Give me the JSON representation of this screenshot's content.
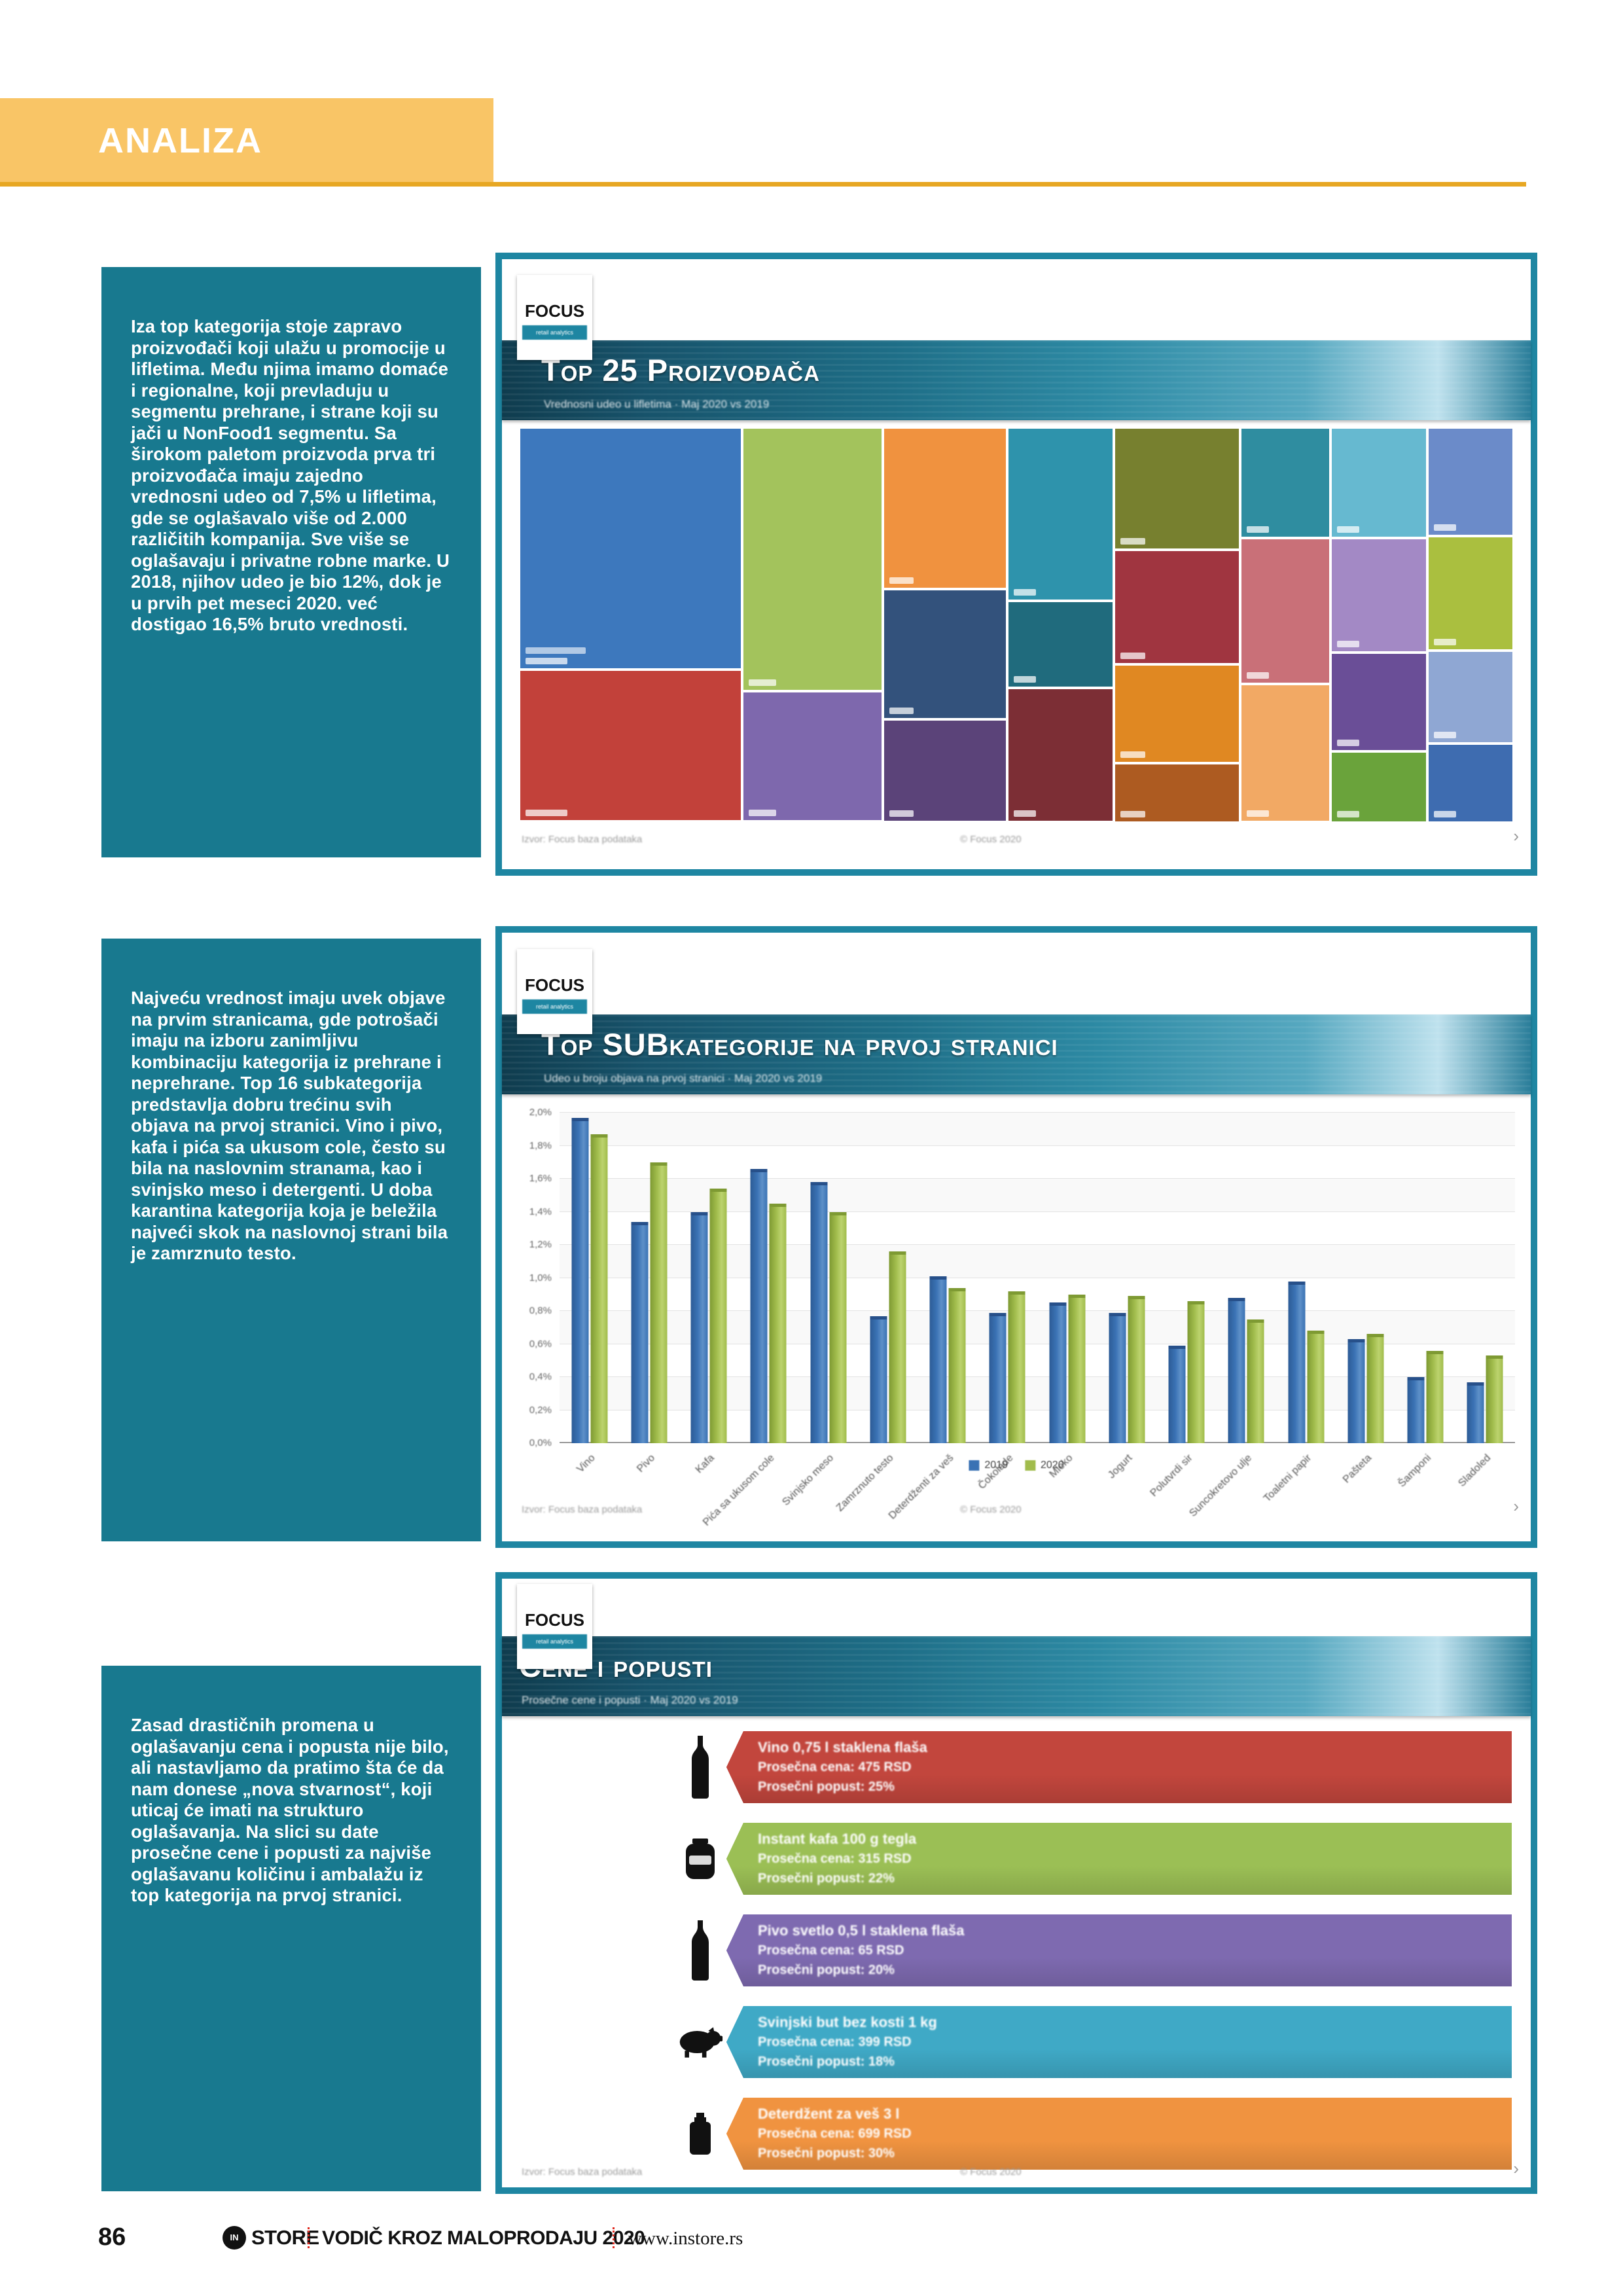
{
  "header": {
    "title": "ANALIZA"
  },
  "paragraphs": {
    "p1": "Iza top kategorija stoje zapravo proizvođači koji ulažu u promocije u lifletima. Među njima imamo domaće i regionalne, koji prevladuju u segmentu prehrane, i strane koji su jači u NonFood1 segmentu. Sa širokom paletom proizvoda prva tri proizvođača imaju zajedno vrednosni udeo od 7,5% u lifletima, gde se oglašavalo više od 2.000 različitih kompanija. Sve više se oglašavaju i privatne robne marke. U 2018, njihov udeo je bio 12%, dok je u prvih pet meseci 2020. već dostigao 16,5% bruto vrednosti.",
    "p2": "Najveću vrednost imaju uvek objave na prvim stranicama, gde potrošači imaju na izboru zanimljivu kombinaciju kategorija iz prehrane i neprehrane. Top 16 subkategorija predstavlja dobru trećinu svih objava na prvoj stranici. Vino i pivo, kafa i pića sa ukusom cole, često su bila na naslovnim stranama, kao i svinjsko meso i detergenti. U doba karantina kategorija koja je beležila najveći skok na naslovnoj strani bila je zamrznuto testo.",
    "p3": "Zasad drastičnih promena u oglašavanju cena i popusta nije bilo, ali nastavljamo da pratimo šta će da nam donese „nova stvarnost“, koji uticaj će imati na strukturo oglašavanja. Na slici su date prosečne cene i popusti za najviše oglašavanu količinu i ambalažu iz top kategorija na prvoj stranici."
  },
  "panel1": {
    "logo": "FOCUS",
    "logo_sub": "retail analytics",
    "title": "Top 25 Proizvođača",
    "subtitle": "Vrednosni udeo u lifletima · Maj 2020 vs 2019",
    "footer_left": "Izvor: Focus baza podataka",
    "footer_center": "© Focus 2020",
    "pager": "›"
  },
  "panel2": {
    "logo": "FOCUS",
    "logo_sub": "retail analytics",
    "title": "Top SUBkategorije na prvoj stranici",
    "subtitle": "Udeo u broju objava na prvoj stranici · Maj 2020 vs 2019",
    "footer_left": "Izvor: Focus baza podataka",
    "footer_center": "© Focus 2020",
    "pager": "›"
  },
  "panel3": {
    "logo": "FOCUS",
    "logo_sub": "retail analytics",
    "title": "Cene i popusti",
    "subtitle": "Prosečne cene i popusti · Maj 2020 vs 2019",
    "footer_left": "Izvor: Focus baza podataka",
    "footer_center": "© Focus 2020",
    "pager": "›"
  },
  "page_footer": {
    "page_number": "86",
    "logo_in": "IN",
    "logo_store": "STORE",
    "guide": "VODIČ KROZ MALOPRODAJU 2020",
    "site": "www.instore.rs"
  },
  "chart_data": [
    {
      "type": "treemap",
      "title": "Top 25 Proizvođača",
      "columns": [
        {
          "width_pct": 22.4,
          "tiles": [
            {
              "color": "#3d78bd",
              "height_pct": 61.5,
              "label": ""
            },
            {
              "color": "#c2413a",
              "height_pct": 38.5,
              "label": ""
            }
          ]
        },
        {
          "width_pct": 14.1,
          "tiles": [
            {
              "color": "#a3c35c",
              "height_pct": 67,
              "label": ""
            },
            {
              "color": "#7e68ad",
              "height_pct": 33,
              "label": ""
            }
          ]
        },
        {
          "width_pct": 12.5,
          "tiles": [
            {
              "color": "#f0923f",
              "height_pct": 41,
              "label": ""
            },
            {
              "color": "#33527c",
              "height_pct": 33,
              "label": ""
            },
            {
              "color": "#5b4379",
              "height_pct": 26,
              "label": ""
            }
          ]
        },
        {
          "width_pct": 10.7,
          "tiles": [
            {
              "color": "#2e93ac",
              "height_pct": 44,
              "label": ""
            },
            {
              "color": "#206b7d",
              "height_pct": 22,
              "label": ""
            },
            {
              "color": "#7c2e35",
              "height_pct": 34,
              "label": ""
            }
          ]
        },
        {
          "width_pct": 12.7,
          "tiles": [
            {
              "color": "#77802f",
              "height_pct": 31,
              "label": ""
            },
            {
              "color": "#a03540",
              "height_pct": 29,
              "label": ""
            },
            {
              "color": "#e08822",
              "height_pct": 25,
              "label": ""
            },
            {
              "color": "#ad5b21",
              "height_pct": 15,
              "label": ""
            }
          ]
        },
        {
          "width_pct": 9.1,
          "tiles": [
            {
              "color": "#2f8da0",
              "height_pct": 28,
              "label": ""
            },
            {
              "color": "#c97078",
              "height_pct": 37,
              "label": ""
            },
            {
              "color": "#f2a964",
              "height_pct": 35,
              "label": ""
            }
          ]
        },
        {
          "width_pct": 9.7,
          "tiles": [
            {
              "color": "#66b9d0",
              "height_pct": 28,
              "label": ""
            },
            {
              "color": "#a389c5",
              "height_pct": 29,
              "label": ""
            },
            {
              "color": "#6a4e97",
              "height_pct": 25,
              "label": ""
            },
            {
              "color": "#6aa33b",
              "height_pct": 18,
              "label": ""
            }
          ]
        },
        {
          "width_pct": 8.7,
          "tiles": [
            {
              "color": "#6b8bc9",
              "height_pct": 27.5,
              "label": ""
            },
            {
              "color": "#aabf3f",
              "height_pct": 29,
              "label": ""
            },
            {
              "color": "#8fa7d3",
              "height_pct": 23.5,
              "label": ""
            },
            {
              "color": "#3e6cb0",
              "height_pct": 20,
              "label": ""
            }
          ]
        }
      ]
    },
    {
      "type": "bar",
      "title": "Top SUBkategorije na prvoj stranici",
      "categories": [
        "Vino",
        "Pivo",
        "Kafa",
        "Pića sa ukusom cole",
        "Svinjsko meso",
        "Zamrznuto testo",
        "Deterdženti za veš",
        "Čokolade",
        "Mleko",
        "Jogurt",
        "Polutvrdi sir",
        "Suncokretovo ulje",
        "Toaletni papir",
        "Pašteta",
        "Šamponi",
        "Sladoled"
      ],
      "series": [
        {
          "name": "2019",
          "color": "#3a72b4",
          "values": [
            1.95,
            1.32,
            1.38,
            1.64,
            1.56,
            0.75,
            0.99,
            0.77,
            0.83,
            0.77,
            0.57,
            0.86,
            0.96,
            0.61,
            0.38,
            0.35
          ]
        },
        {
          "name": "2020",
          "color": "#a1bc4c",
          "values": [
            1.85,
            1.68,
            1.52,
            1.43,
            1.38,
            1.14,
            0.92,
            0.9,
            0.88,
            0.87,
            0.84,
            0.73,
            0.66,
            0.64,
            0.54,
            0.51
          ]
        }
      ],
      "xlabel": "",
      "ylabel": "",
      "ylim": [
        0,
        2.0
      ],
      "yticks": [
        "0,0%",
        "0,2%",
        "0,4%",
        "0,6%",
        "0,8%",
        "1,0%",
        "1,2%",
        "1,4%",
        "1,6%",
        "1,8%",
        "2,0%"
      ],
      "grid": true,
      "legend_position": "bottom"
    },
    {
      "type": "bar",
      "orientation": "horizontal",
      "title": "Cene i popusti",
      "items": [
        {
          "color": "#c2463d",
          "icon": "wine-bottle-icon",
          "lines": [
            "Vino 0,75 l staklena flaša",
            "Prosečna cena: 475 RSD",
            "Prosečni popust: 25%"
          ]
        },
        {
          "color": "#9bbf55",
          "icon": "coffee-jar-icon",
          "lines": [
            "Instant kafa 100 g tegla",
            "Prosečna cena: 315 RSD",
            "Prosečni popust: 22%"
          ]
        },
        {
          "color": "#7e6ab0",
          "icon": "beer-bottle-icon",
          "lines": [
            "Pivo svetlo 0,5 l staklena flaša",
            "Prosečna cena: 65 RSD",
            "Prosečni popust: 20%"
          ]
        },
        {
          "color": "#3fa9c6",
          "icon": "pig-icon",
          "lines": [
            "Svinjski but bez kosti 1 kg",
            "Prosečna cena: 399 RSD",
            "Prosečni popust: 18%"
          ]
        },
        {
          "color": "#f09340",
          "icon": "detergent-bottle-icon",
          "lines": [
            "Deterdžent za veš 3 l",
            "Prosečna cena: 699 RSD",
            "Prosečni popust: 30%"
          ]
        }
      ]
    }
  ]
}
